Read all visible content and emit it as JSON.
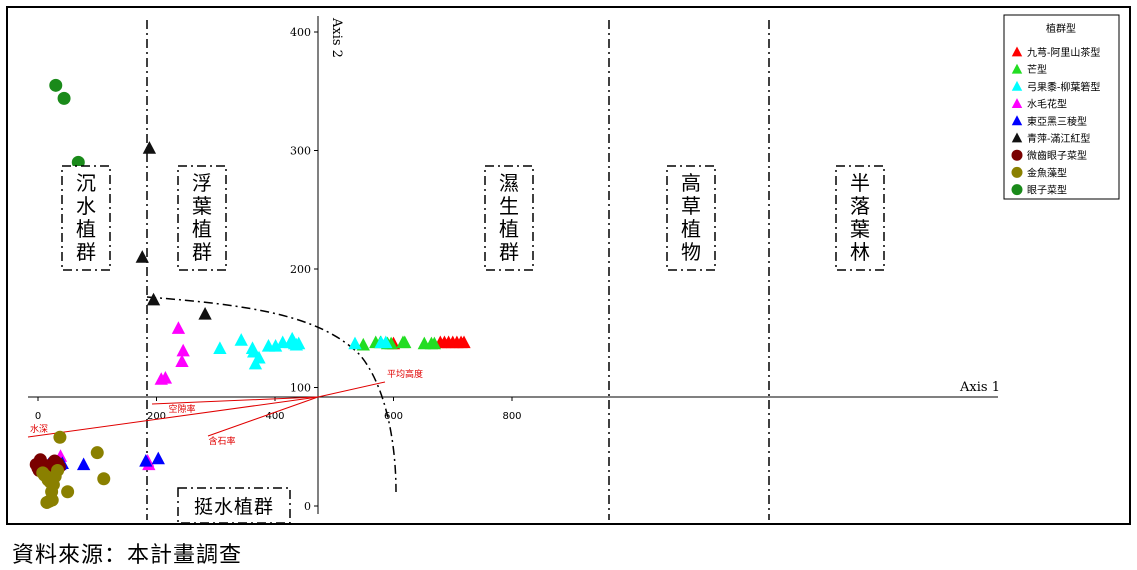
{
  "chart_data": {
    "type": "scatter",
    "xlabel": "Axis 1",
    "ylabel": "Axis 2",
    "x_ticks": [
      0,
      200,
      400,
      600,
      800
    ],
    "y_ticks": [
      0,
      100,
      200,
      300,
      400
    ],
    "xlim": [
      -8,
      810
    ],
    "ylim": [
      -12,
      415
    ],
    "legend_title": "植群型",
    "legend_position": "top-right",
    "series": [
      {
        "name": "九芎-阿里山茶型",
        "color": "#ff0000",
        "shape": "triangle",
        "points": [
          [
            600,
            137
          ],
          [
            679,
            138
          ],
          [
            686,
            138
          ],
          [
            693,
            138
          ],
          [
            700,
            138
          ],
          [
            707,
            138
          ],
          [
            714,
            138
          ],
          [
            719,
            138
          ]
        ]
      },
      {
        "name": "芒型",
        "color": "#22dd22",
        "shape": "triangle",
        "points": [
          [
            549,
            136
          ],
          [
            570,
            138
          ],
          [
            578,
            138
          ],
          [
            590,
            137
          ],
          [
            596,
            137
          ],
          [
            616,
            138
          ],
          [
            619,
            138
          ],
          [
            652,
            137
          ],
          [
            664,
            137
          ],
          [
            669,
            137
          ]
        ]
      },
      {
        "name": "弓果黍-柳葉箬型",
        "color": "#00ffff",
        "shape": "triangle",
        "points": [
          [
            307,
            133
          ],
          [
            343,
            140
          ],
          [
            362,
            133
          ],
          [
            364,
            130
          ],
          [
            367,
            120
          ],
          [
            373,
            125
          ],
          [
            389,
            135
          ],
          [
            401,
            135
          ],
          [
            413,
            138
          ],
          [
            426,
            138
          ],
          [
            429,
            141
          ],
          [
            433,
            137
          ],
          [
            436,
            136
          ],
          [
            440,
            137
          ],
          [
            535,
            137
          ],
          [
            579,
            138
          ],
          [
            587,
            138
          ]
        ]
      },
      {
        "name": "水毛花型",
        "color": "#ff00ff",
        "shape": "triangle",
        "points": [
          [
            237,
            150
          ],
          [
            243,
            122
          ],
          [
            245,
            131
          ],
          [
            208,
            107
          ],
          [
            215,
            108
          ],
          [
            185,
            38
          ],
          [
            187,
            35
          ],
          [
            38,
            42
          ]
        ]
      },
      {
        "name": "東亞黑三稜型",
        "color": "#0000ff",
        "shape": "triangle",
        "points": [
          [
            18,
            35
          ],
          [
            31,
            35
          ],
          [
            37,
            35
          ],
          [
            41,
            36
          ],
          [
            77,
            35
          ],
          [
            182,
            38
          ],
          [
            203,
            40
          ]
        ]
      },
      {
        "name": "青萍-滿江紅型",
        "color": "#111111",
        "shape": "triangle",
        "points": [
          [
            188,
            302
          ],
          [
            176,
            210
          ],
          [
            195,
            174
          ],
          [
            282,
            162
          ]
        ]
      },
      {
        "name": "微齒眼子菜型",
        "color": "#7a0000",
        "shape": "circle",
        "points": [
          [
            0,
            32
          ],
          [
            2,
            30
          ],
          [
            4,
            33
          ],
          [
            6,
            35
          ],
          [
            9,
            32
          ],
          [
            13,
            28
          ],
          [
            16,
            34
          ],
          [
            20,
            30
          ],
          [
            24,
            33
          ],
          [
            28,
            38
          ],
          [
            33,
            36
          ],
          [
            36,
            33
          ],
          [
            -3,
            35
          ],
          [
            4,
            39
          ]
        ]
      },
      {
        "name": "金魚藻型",
        "color": "#8a8000",
        "shape": "circle",
        "points": [
          [
            8,
            28
          ],
          [
            11,
            26
          ],
          [
            14,
            25
          ],
          [
            17,
            22
          ],
          [
            21,
            20
          ],
          [
            23,
            12
          ],
          [
            26,
            18
          ],
          [
            29,
            25
          ],
          [
            33,
            30
          ],
          [
            37,
            58
          ],
          [
            50,
            12
          ],
          [
            100,
            45
          ],
          [
            111,
            23
          ],
          [
            19,
            4
          ],
          [
            15,
            3
          ],
          [
            24,
            5
          ]
        ]
      },
      {
        "name": "眼子菜型",
        "color": "#1a8a1a",
        "shape": "circle",
        "points": [
          [
            30,
            355
          ],
          [
            44,
            344
          ],
          [
            68,
            290
          ]
        ]
      }
    ],
    "annotations": [
      {
        "text": "沉\n水\n植\n群"
      },
      {
        "text": "浮\n葉\n植\n群"
      },
      {
        "text": "濕\n生\n植\n群"
      },
      {
        "text": "高\n草\n植\n物"
      },
      {
        "text": "半\n落\n葉\n林"
      },
      {
        "text": "挺水植群"
      }
    ],
    "vectors": [
      {
        "label": "平均高度"
      },
      {
        "label": "空隙率"
      },
      {
        "label": "水深"
      },
      {
        "label": "含石率"
      }
    ]
  },
  "footer": {
    "source": "資料來源：本計畫調查"
  }
}
